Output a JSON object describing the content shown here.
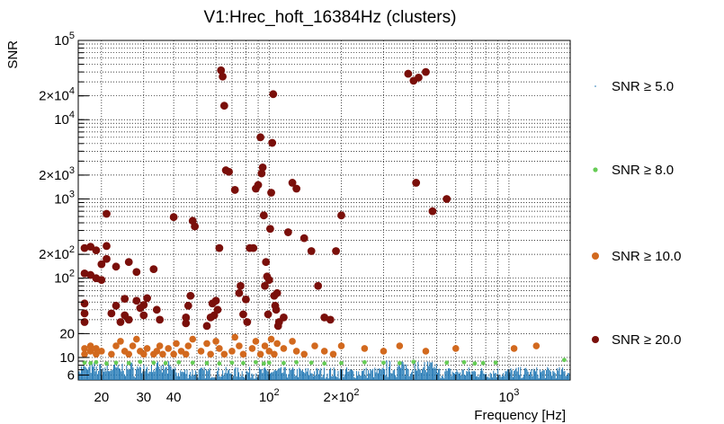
{
  "chart_data": {
    "type": "scatter",
    "title": "V1:Hrec_hoft_16384Hz (clusters)",
    "xlabel": "Frequency [Hz]",
    "ylabel": "SNR",
    "xscale": "log",
    "yscale": "log",
    "xlim": [
      16,
      1800
    ],
    "ylim": [
      5.2,
      100000
    ],
    "grid": true,
    "legend_position": "right",
    "x_ticks": [
      {
        "value": 20,
        "label": "20"
      },
      {
        "value": 30,
        "label": "30"
      },
      {
        "value": 40,
        "label": "40"
      },
      {
        "value": 100,
        "label": "10",
        "exp": "2"
      },
      {
        "value": 200,
        "label": "2×10",
        "exp": "2"
      },
      {
        "value": 1000,
        "label": "10",
        "exp": "3"
      }
    ],
    "y_ticks": [
      {
        "value": 6,
        "label": "6"
      },
      {
        "value": 10,
        "label": "10"
      },
      {
        "value": 20,
        "label": "20"
      },
      {
        "value": 100,
        "label": "10",
        "exp": "2"
      },
      {
        "value": 200,
        "label": "2×10",
        "exp": "2"
      },
      {
        "value": 1000,
        "label": "10",
        "exp": "3"
      },
      {
        "value": 2000,
        "label": "2×10",
        "exp": "3"
      },
      {
        "value": 10000,
        "label": "10",
        "exp": "4"
      },
      {
        "value": 20000,
        "label": "2×10",
        "exp": "4"
      },
      {
        "value": 100000,
        "label": "10",
        "exp": "5"
      }
    ],
    "series": [
      {
        "name": "SNR ≥ 5.0",
        "color": "#1f77b4",
        "marker": "tiny",
        "points": []
      },
      {
        "name": "SNR ≥ 8.0",
        "color": "#66cc55",
        "marker": "small",
        "points": [
          [
            17,
            8.6
          ],
          [
            18,
            8.5
          ],
          [
            19,
            8.7
          ],
          [
            21,
            8.4
          ],
          [
            23,
            8.6
          ],
          [
            26,
            8.5
          ],
          [
            29,
            8.8
          ],
          [
            33,
            8.6
          ],
          [
            37,
            8.5
          ],
          [
            42,
            8.7
          ],
          [
            48,
            8.6
          ],
          [
            55,
            8.5
          ],
          [
            62,
            8.4
          ],
          [
            70,
            8.6
          ],
          [
            78,
            8.5
          ],
          [
            88,
            8.7
          ],
          [
            95,
            8.4
          ],
          [
            100,
            8.6
          ],
          [
            115,
            8.5
          ],
          [
            130,
            8.7
          ],
          [
            150,
            8.6
          ],
          [
            170,
            8.4
          ],
          [
            200,
            8.5
          ],
          [
            250,
            8.7
          ],
          [
            300,
            8.6
          ],
          [
            350,
            8.5
          ],
          [
            400,
            8.8
          ],
          [
            550,
            8.6
          ],
          [
            650,
            8.7
          ],
          [
            720,
            8.4
          ],
          [
            780,
            8.5
          ],
          [
            880,
            8.6
          ],
          [
            1700,
            9.3
          ]
        ]
      },
      {
        "name": "SNR ≥ 10.0",
        "color": "#d2691e",
        "marker": "medium",
        "points": [
          [
            17,
            11
          ],
          [
            17,
            13
          ],
          [
            18,
            12
          ],
          [
            18,
            14
          ],
          [
            19,
            11
          ],
          [
            19,
            13
          ],
          [
            20,
            12
          ],
          [
            22,
            11
          ],
          [
            23,
            14
          ],
          [
            24,
            16
          ],
          [
            25,
            12
          ],
          [
            26,
            11
          ],
          [
            27,
            14
          ],
          [
            28,
            17
          ],
          [
            29,
            12
          ],
          [
            30,
            11
          ],
          [
            31,
            13
          ],
          [
            33,
            11
          ],
          [
            34,
            12
          ],
          [
            35,
            14
          ],
          [
            36,
            11
          ],
          [
            38,
            13
          ],
          [
            40,
            11
          ],
          [
            41,
            15
          ],
          [
            43,
            12
          ],
          [
            45,
            11
          ],
          [
            46,
            14
          ],
          [
            48,
            17
          ],
          [
            52,
            12
          ],
          [
            55,
            15
          ],
          [
            57,
            11
          ],
          [
            60,
            16
          ],
          [
            62,
            13
          ],
          [
            65,
            11
          ],
          [
            70,
            12
          ],
          [
            72,
            18
          ],
          [
            75,
            14
          ],
          [
            78,
            11
          ],
          [
            85,
            13
          ],
          [
            88,
            16
          ],
          [
            92,
            11
          ],
          [
            96,
            14
          ],
          [
            100,
            12
          ],
          [
            102,
            17
          ],
          [
            105,
            11
          ],
          [
            108,
            15
          ],
          [
            115,
            13
          ],
          [
            125,
            16
          ],
          [
            130,
            12
          ],
          [
            140,
            11
          ],
          [
            155,
            14
          ],
          [
            170,
            12
          ],
          [
            185,
            11
          ],
          [
            200,
            14
          ],
          [
            250,
            13
          ],
          [
            300,
            12
          ],
          [
            350,
            14
          ],
          [
            450,
            12
          ],
          [
            600,
            13
          ],
          [
            1050,
            13
          ],
          [
            1300,
            14
          ]
        ]
      },
      {
        "name": "SNR ≥ 20.0",
        "color": "#7a0f0a",
        "marker": "large",
        "points": [
          [
            17,
            28
          ],
          [
            17,
            36
          ],
          [
            17,
            48
          ],
          [
            17,
            115
          ],
          [
            17,
            240
          ],
          [
            18,
            110
          ],
          [
            18,
            250
          ],
          [
            19,
            100
          ],
          [
            19,
            225
          ],
          [
            20,
            95
          ],
          [
            20,
            150
          ],
          [
            21,
            175
          ],
          [
            21,
            255
          ],
          [
            21,
            650
          ],
          [
            22,
            36
          ],
          [
            23,
            45
          ],
          [
            23,
            140
          ],
          [
            24,
            28
          ],
          [
            25,
            34
          ],
          [
            25,
            55
          ],
          [
            26,
            160
          ],
          [
            26,
            30
          ],
          [
            28,
            120
          ],
          [
            28,
            52
          ],
          [
            29,
            42
          ],
          [
            30,
            34
          ],
          [
            30,
            46
          ],
          [
            31,
            56
          ],
          [
            33,
            130
          ],
          [
            34,
            40
          ],
          [
            35,
            30
          ],
          [
            40,
            590
          ],
          [
            45,
            27
          ],
          [
            45,
            32
          ],
          [
            46,
            45
          ],
          [
            47,
            60
          ],
          [
            48,
            530
          ],
          [
            49,
            450
          ],
          [
            55,
            25
          ],
          [
            57,
            32
          ],
          [
            58,
            48
          ],
          [
            59,
            34
          ],
          [
            60,
            52
          ],
          [
            61,
            40
          ],
          [
            62,
            240
          ],
          [
            63,
            42000
          ],
          [
            64,
            35000
          ],
          [
            65,
            15000
          ],
          [
            66,
            2300
          ],
          [
            68,
            2200
          ],
          [
            72,
            1300
          ],
          [
            75,
            65
          ],
          [
            76,
            80
          ],
          [
            78,
            35
          ],
          [
            80,
            54
          ],
          [
            81,
            28
          ],
          [
            83,
            240
          ],
          [
            86,
            240
          ],
          [
            88,
            1350
          ],
          [
            90,
            1500
          ],
          [
            92,
            6000
          ],
          [
            93,
            2100
          ],
          [
            94,
            2500
          ],
          [
            95,
            620
          ],
          [
            96,
            80
          ],
          [
            97,
            160
          ],
          [
            98,
            105
          ],
          [
            99,
            35
          ],
          [
            100,
            95
          ],
          [
            101,
            420
          ],
          [
            102,
            1200
          ],
          [
            103,
            5100
          ],
          [
            104,
            21000
          ],
          [
            105,
            60
          ],
          [
            106,
            45
          ],
          [
            107,
            40
          ],
          [
            108,
            65
          ],
          [
            109,
            25
          ],
          [
            110,
            28
          ],
          [
            115,
            32
          ],
          [
            120,
            380
          ],
          [
            125,
            1600
          ],
          [
            130,
            1350
          ],
          [
            140,
            320
          ],
          [
            150,
            220
          ],
          [
            160,
            80
          ],
          [
            170,
            32
          ],
          [
            180,
            30
          ],
          [
            190,
            220
          ],
          [
            200,
            620
          ],
          [
            380,
            38000
          ],
          [
            400,
            31000
          ],
          [
            410,
            1600
          ],
          [
            420,
            34000
          ],
          [
            450,
            40000
          ],
          [
            480,
            700
          ],
          [
            550,
            1000
          ]
        ]
      }
    ]
  },
  "legend": [
    {
      "label": "SNR ≥ 5.0"
    },
    {
      "label": "SNR ≥ 8.0"
    },
    {
      "label": "SNR ≥ 10.0"
    },
    {
      "label": "SNR ≥ 20.0"
    }
  ]
}
